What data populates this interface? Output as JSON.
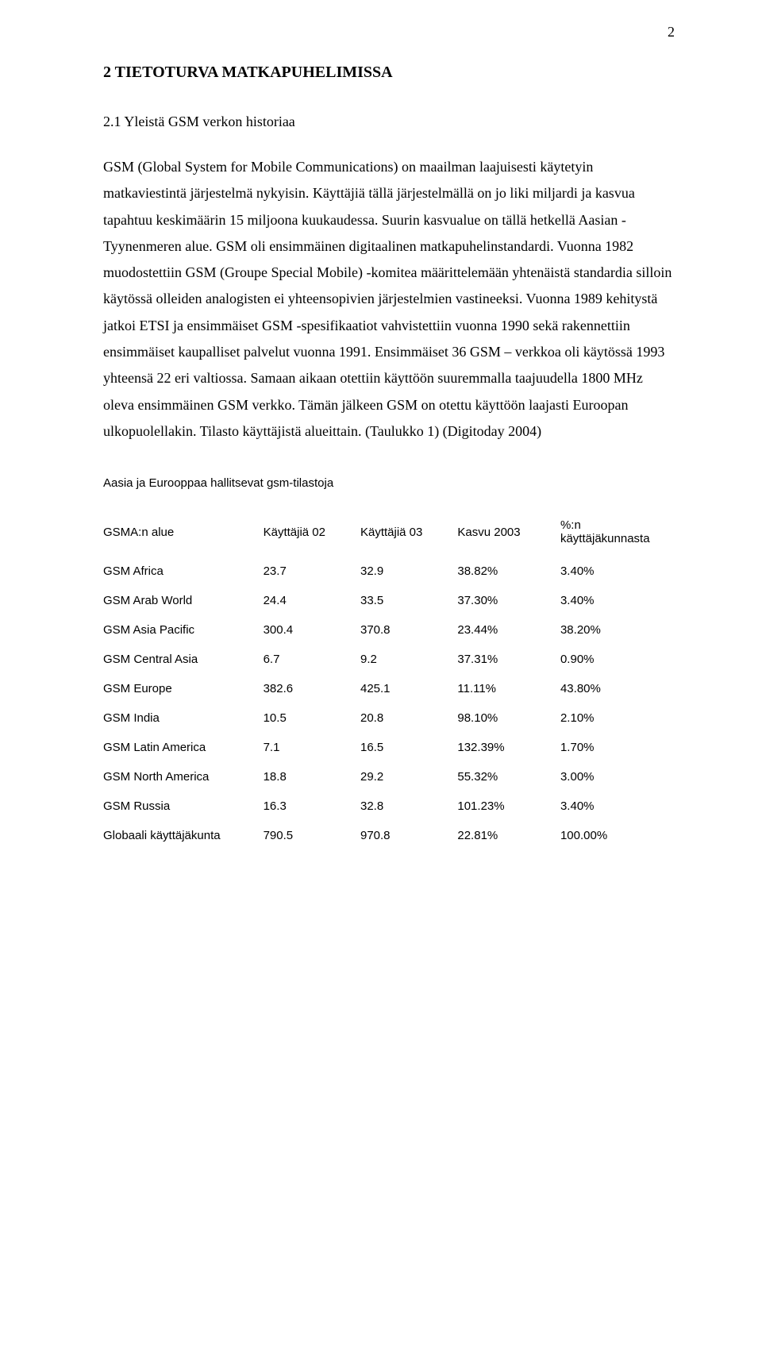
{
  "page_number": "2",
  "heading1": "2 TIETOTURVA MATKAPUHELIMISSA",
  "heading2": "2.1 Yleistä GSM verkon historiaa",
  "body_paragraph": "GSM (Global System for Mobile Communications) on maailman laajuisesti käytetyin matkaviestintä järjestelmä nykyisin. Käyttäjiä tällä järjestelmällä on jo liki miljardi ja kasvua tapahtuu keskimäärin 15 miljoona kuukaudessa. Suurin kasvualue on tällä hetkellä Aasian - Tyynenmeren alue. GSM oli ensimmäinen digitaalinen matkapuhelinstandardi. Vuonna 1982 muodostettiin GSM (Groupe Special Mobile) -komitea määrittelemään yhtenäistä standardia silloin käytössä olleiden analogisten ei yhteensopivien järjestelmien vastineeksi. Vuonna 1989 kehitystä jatkoi ETSI ja ensimmäiset GSM -spesifikaatiot vahvistettiin vuonna 1990 sekä rakennettiin ensimmäiset kaupalliset palvelut vuonna 1991. Ensimmäiset 36 GSM – verkkoa oli käytössä 1993 yhteensä 22 eri valtiossa. Samaan aikaan otettiin käyttöön suuremmalla taajuudella 1800 MHz oleva ensimmäinen GSM verkko. Tämän jälkeen GSM on otettu käyttöön laajasti Euroopan ulkopuolellakin. Tilasto käyttäjistä alueittain. (Taulukko 1) (Digitoday 2004)",
  "table": {
    "title": "Aasia ja Eurooppaa hallitsevat gsm-tilastoja",
    "columns": [
      "GSMA:n alue",
      "Käyttäjiä 02",
      "Käyttäjiä 03",
      "Kasvu 2003",
      "%:n käyttäjäkunnasta"
    ],
    "rows": [
      [
        "GSM Africa",
        "23.7",
        "32.9",
        "38.82%",
        "3.40%"
      ],
      [
        "GSM Arab World",
        "24.4",
        "33.5",
        "37.30%",
        "3.40%"
      ],
      [
        "GSM Asia Pacific",
        "300.4",
        "370.8",
        "23.44%",
        "38.20%"
      ],
      [
        "GSM Central Asia",
        "6.7",
        "9.2",
        "37.31%",
        "0.90%"
      ],
      [
        "GSM Europe",
        "382.6",
        "425.1",
        "11.11%",
        "43.80%"
      ],
      [
        "GSM India",
        "10.5",
        "20.8",
        "98.10%",
        "2.10%"
      ],
      [
        "GSM Latin America",
        "7.1",
        "16.5",
        "132.39%",
        "1.70%"
      ],
      [
        "GSM North America",
        "18.8",
        "29.2",
        "55.32%",
        "3.00%"
      ],
      [
        "GSM Russia",
        "16.3",
        "32.8",
        "101.23%",
        "3.40%"
      ],
      [
        "Globaali käyttäjäkunta",
        "790.5",
        "970.8",
        "22.81%",
        "100.00%"
      ]
    ]
  }
}
